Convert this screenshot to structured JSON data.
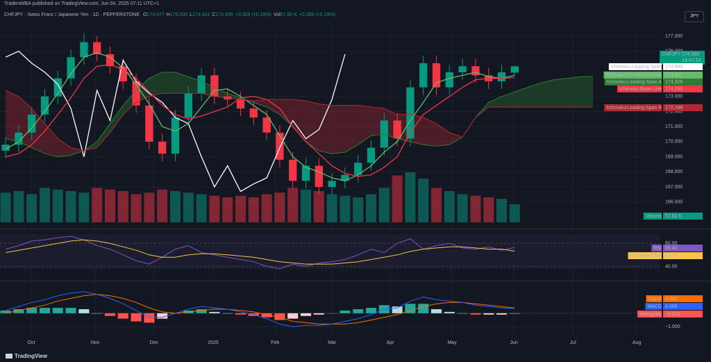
{
  "header": {
    "attribution": "TradersMBA published on TradingView.com, Jun 04, 2025 07:11 UTC+1",
    "currency": "JPY",
    "footer": "TradingView"
  },
  "chart_data": [
    {
      "type": "candlestick",
      "title": "CHFJPY · Swiss Franc / Japanese Yen · 1D · PEPPERSTONE",
      "stats": [
        {
          "name": "O",
          "value": 174.577,
          "label": "174.577"
        },
        {
          "name": "H",
          "value": 175.035,
          "label": "175.035"
        },
        {
          "name": "L",
          "value": 174.422,
          "label": "174.422"
        },
        {
          "name": "C",
          "value": 174.995,
          "label": "174.995"
        }
      ],
      "change": "+0.306 (+0.18%)",
      "volume_stat": {
        "name": "Vol",
        "value": 57.82,
        "label": "57.82 K",
        "change": "+0.306 (+0.18%)"
      },
      "xlim": [
        -0.43,
        50.1
      ],
      "xticks": [
        {
          "value": 1.97,
          "label": "Oct"
        },
        {
          "value": 6.86,
          "label": "Nov"
        },
        {
          "value": 11.38,
          "label": "Dec"
        },
        {
          "value": 15.9,
          "label": "2025"
        },
        {
          "value": 20.64,
          "label": "Feb"
        },
        {
          "value": 25.0,
          "label": "Mar"
        },
        {
          "value": 29.47,
          "label": "Apr"
        },
        {
          "value": 34.2,
          "label": "May"
        },
        {
          "value": 38.94,
          "label": "Jun"
        },
        {
          "value": 43.46,
          "label": "Jul"
        },
        {
          "value": 48.35,
          "label": "Aug"
        }
      ],
      "ylim": [
        164.65,
        177.55
      ],
      "yticks": [
        {
          "value": 166,
          "label": "166.000"
        },
        {
          "value": 167,
          "label": "167.000"
        },
        {
          "value": 168,
          "label": "168.000"
        },
        {
          "value": 169,
          "label": "169.000"
        },
        {
          "value": 170,
          "label": "170.000"
        },
        {
          "value": 171,
          "label": "171.000"
        },
        {
          "value": 172,
          "label": "172.000"
        },
        {
          "value": 173,
          "label": "173.000"
        },
        {
          "value": 176,
          "label": "176.000"
        },
        {
          "value": 177,
          "label": "177.000"
        }
      ],
      "grid": true,
      "up_color": "#089981",
      "down_color": "#f23645",
      "price_label": {
        "name": "CHFJPY",
        "value": 174.995,
        "label": "174.995",
        "countdown": "14:47:33",
        "color": "#089981"
      },
      "open": [
        169.4,
        169.8,
        170.6,
        171.8,
        173.0,
        174.2,
        175.6,
        176.6,
        175.8,
        175.0,
        174.0,
        172.4,
        170.0,
        169.2,
        171.6,
        173.2,
        174.4,
        173.0,
        172.8,
        172.2,
        171.6,
        170.6,
        168.8,
        167.4,
        168.4,
        167.0,
        167.4,
        167.8,
        168.6,
        169.6,
        171.4,
        170.2,
        173.6,
        175.2,
        173.6,
        174.6,
        175.0,
        174.4,
        174.0,
        174.577
      ],
      "high": [
        170.3,
        171.1,
        172.3,
        173.5,
        174.7,
        176.1,
        177.2,
        177.0,
        176.3,
        175.5,
        174.5,
        172.9,
        170.5,
        172.1,
        173.7,
        174.9,
        174.9,
        173.5,
        173.3,
        172.7,
        172.1,
        171.1,
        169.3,
        168.9,
        168.9,
        167.9,
        168.3,
        169.1,
        170.1,
        171.9,
        171.9,
        174.1,
        175.7,
        175.7,
        175.1,
        175.5,
        175.5,
        174.9,
        175.1,
        175.035
      ],
      "low": [
        168.9,
        169.3,
        170.1,
        171.3,
        172.5,
        173.7,
        175.1,
        175.3,
        174.5,
        173.5,
        171.9,
        169.5,
        168.7,
        168.7,
        171.1,
        172.7,
        172.5,
        172.3,
        171.7,
        171.1,
        170.1,
        168.3,
        166.9,
        166.9,
        166.5,
        166.5,
        166.9,
        167.3,
        168.1,
        169.1,
        169.7,
        169.7,
        173.1,
        173.1,
        173.1,
        174.1,
        173.9,
        173.5,
        173.5,
        174.422
      ],
      "close": [
        169.8,
        170.6,
        171.8,
        173.0,
        174.2,
        175.6,
        176.6,
        175.8,
        175.0,
        174.0,
        172.4,
        170.0,
        169.2,
        171.6,
        173.2,
        174.4,
        173.0,
        172.8,
        172.2,
        171.6,
        170.6,
        168.8,
        167.4,
        168.4,
        167.0,
        167.4,
        167.8,
        168.6,
        169.6,
        171.4,
        170.2,
        173.6,
        175.2,
        173.6,
        174.6,
        175.0,
        174.4,
        174.0,
        174.6,
        174.995
      ],
      "series": [
        {
          "name": "Ichimoku:Lagging Span",
          "color": "#ffffff",
          "values": [
            175.6,
            176.0,
            175.2,
            174.6,
            173.8,
            172.2,
            169.0,
            173.4,
            171.4,
            175.4,
            174.0,
            173.2,
            172.6,
            171.6,
            171.2,
            169.0,
            167.0,
            168.4,
            166.7,
            167.2,
            167.6,
            169.6,
            171.4,
            170.2,
            170.8,
            172.8,
            175.8
          ],
          "last": {
            "value": 174.995,
            "label": "174.995"
          }
        },
        {
          "name": "Ichimoku:Conversion Line",
          "color": "#66bb6a",
          "values": [
            169.5,
            170.0,
            170.9,
            172.0,
            173.2,
            174.5,
            175.6,
            175.9,
            175.6,
            174.9,
            173.8,
            172.5,
            171.0,
            170.7,
            171.2,
            172.3,
            173.4,
            173.5,
            173.0,
            172.4,
            171.8,
            170.4,
            169.0,
            168.3,
            168.0,
            167.6,
            167.4,
            167.8,
            168.4,
            169.3,
            170.0,
            171.4,
            172.6,
            173.9,
            174.2,
            174.4,
            174.6,
            174.3,
            174.2,
            174.4
          ],
          "last": {
            "value": 174.4,
            "label": "174.400"
          }
        },
        {
          "name": "Ichimoku:Leading Span A",
          "color": "#2e7d32",
          "cloud": "A",
          "values": [
            170.2,
            170.0,
            169.6,
            169.2,
            169.0,
            169.1,
            169.4,
            170.0,
            171.2,
            172.4,
            173.4,
            174.2,
            174.6,
            174.6,
            174.3,
            174.0,
            173.6,
            173.2,
            172.9,
            172.6,
            172.3,
            171.8,
            171.0,
            170.0,
            169.4,
            169.2,
            169.3,
            169.8,
            170.4,
            170.5,
            170.2,
            170.0,
            169.8,
            169.7,
            169.8,
            170.3,
            171.6,
            172.6,
            173.0,
            173.3,
            173.6,
            173.9,
            174.1,
            174.2,
            174.3,
            174.328
          ],
          "last": {
            "value": 174.328,
            "label": "174.328"
          }
        },
        {
          "name": "Ichimoku:Base Line",
          "color": "#f23645",
          "values": [
            169.0,
            169.2,
            169.8,
            170.7,
            171.8,
            172.9,
            174.2,
            175.0,
            175.1,
            174.8,
            174.2,
            173.3,
            172.4,
            171.8,
            171.5,
            171.7,
            172.0,
            172.3,
            172.9,
            173.0,
            172.8,
            172.2,
            171.0,
            170.0,
            169.2,
            168.4,
            167.9,
            167.7,
            167.8,
            168.3,
            169.0,
            170.6,
            171.8,
            172.4,
            173.0,
            173.6,
            174.1,
            174.2,
            174.2,
            174.25
          ],
          "last": {
            "value": 174.25,
            "label": "174.250"
          }
        },
        {
          "name": "Ichimoku:Leading Span B",
          "color": "#b22833",
          "cloud": "B",
          "values": [
            173.4,
            173.0,
            172.2,
            171.2,
            170.2,
            169.6,
            169.4,
            169.6,
            170.6,
            171.8,
            172.6,
            173.0,
            173.2,
            173.2,
            173.2,
            173.2,
            173.0,
            172.9,
            172.8,
            172.7,
            172.8,
            172.8,
            172.8,
            172.7,
            172.5,
            172.4,
            172.4,
            172.4,
            172.3,
            172.2,
            171.8,
            171.8,
            171.6,
            171.2,
            170.6,
            170.3,
            171.6,
            172.3,
            172.3,
            172.3,
            172.3,
            172.3,
            172.3,
            172.3,
            172.3,
            172.289
          ],
          "last": {
            "value": 172.289,
            "label": "172.289"
          }
        }
      ],
      "volume": {
        "name": "Volume",
        "color": "#089981",
        "values": [
          95,
          100,
          90,
          110,
          105,
          100,
          95,
          110,
          105,
          100,
          90,
          95,
          105,
          100,
          95,
          90,
          85,
          80,
          85,
          80,
          90,
          95,
          110,
          105,
          100,
          90,
          85,
          80,
          90,
          110,
          150,
          160,
          140,
          110,
          100,
          90,
          85,
          80,
          75,
          57.82
        ],
        "last": {
          "value": 57.82,
          "label": "57.82 K"
        }
      }
    },
    {
      "type": "line",
      "ylim": [
        30,
        68
      ],
      "yticks": [
        {
          "value": 60,
          "label": "60.00"
        },
        {
          "value": 40,
          "label": "40.00"
        }
      ],
      "grid": true,
      "series": [
        {
          "name": "RSI",
          "color": "#7e57c2",
          "values": [
            55,
            58,
            62,
            63,
            65,
            66,
            63,
            58,
            55,
            50,
            45,
            42,
            48,
            55,
            58,
            52,
            50,
            48,
            46,
            44,
            40,
            38,
            42,
            40,
            43,
            44,
            46,
            50,
            55,
            52,
            60,
            64,
            55,
            58,
            60,
            56,
            55,
            57,
            54,
            56.42
          ],
          "last": {
            "value": 56.42,
            "label": "56.42"
          }
        },
        {
          "name": "RSI-based MA",
          "color": "#f7c548",
          "values": [
            52,
            54,
            56,
            58,
            60,
            62,
            63,
            62,
            60,
            57,
            54,
            50,
            48,
            48,
            50,
            51,
            51,
            50,
            49,
            48,
            46,
            44,
            43,
            42,
            42,
            42,
            43,
            44,
            46,
            48,
            50,
            53,
            55,
            56,
            57,
            57,
            56,
            55,
            55,
            53.23
          ],
          "last": {
            "value": 53.23,
            "label": "53.23"
          }
        }
      ]
    },
    {
      "type": "macd",
      "ylim": [
        -1.5,
        2.1
      ],
      "yticks": [
        {
          "value": -1,
          "label": "−1.000"
        }
      ],
      "grid": true,
      "series": [
        {
          "name": "Signal",
          "color": "#ff6d00",
          "values": [
            0.0,
            0.2,
            0.4,
            0.6,
            0.9,
            1.1,
            1.3,
            1.4,
            1.3,
            1.1,
            0.8,
            0.4,
            0.1,
            0.0,
            0.1,
            0.2,
            0.3,
            0.3,
            0.2,
            0.1,
            -0.1,
            -0.3,
            -0.6,
            -0.7,
            -0.8,
            -0.8,
            -0.8,
            -0.7,
            -0.5,
            -0.3,
            -0.1,
            0.2,
            0.5,
            0.7,
            0.8,
            0.8,
            0.7,
            0.6,
            0.5,
            0.382
          ],
          "last": {
            "value": 0.382,
            "label": "0.382"
          }
        },
        {
          "name": "MACD",
          "color": "#2962ff",
          "values": [
            0.2,
            0.5,
            0.8,
            1.0,
            1.3,
            1.5,
            1.6,
            1.4,
            1.1,
            0.7,
            0.2,
            -0.3,
            -0.3,
            0.0,
            0.3,
            0.5,
            0.4,
            0.3,
            0.1,
            -0.1,
            -0.4,
            -0.8,
            -1.0,
            -0.9,
            -0.9,
            -0.8,
            -0.6,
            -0.4,
            -0.1,
            0.3,
            0.4,
            0.9,
            1.2,
            1.0,
            0.9,
            0.8,
            0.6,
            0.5,
            0.4,
            0.366
          ],
          "last": {
            "value": 0.366,
            "label": "0.366"
          }
        },
        {
          "name": "Histogram",
          "color": "#ff5252",
          "histogram": true,
          "colors": [
            "#26a69a",
            "#b2dfdb",
            "#ffcdd2",
            "#ff5252"
          ],
          "values": [
            0.2,
            0.3,
            0.4,
            0.4,
            0.4,
            0.4,
            0.3,
            0.0,
            -0.2,
            -0.4,
            -0.6,
            -0.7,
            -0.4,
            0.0,
            0.2,
            0.3,
            0.1,
            0.0,
            -0.1,
            -0.2,
            -0.3,
            -0.5,
            -0.4,
            -0.2,
            -0.1,
            0.0,
            0.2,
            0.3,
            0.4,
            0.6,
            0.5,
            0.7,
            0.7,
            0.3,
            0.1,
            0.0,
            -0.1,
            -0.1,
            -0.1,
            -0.016
          ],
          "last": {
            "value": -0.016,
            "label": "−0.016"
          }
        }
      ]
    }
  ]
}
